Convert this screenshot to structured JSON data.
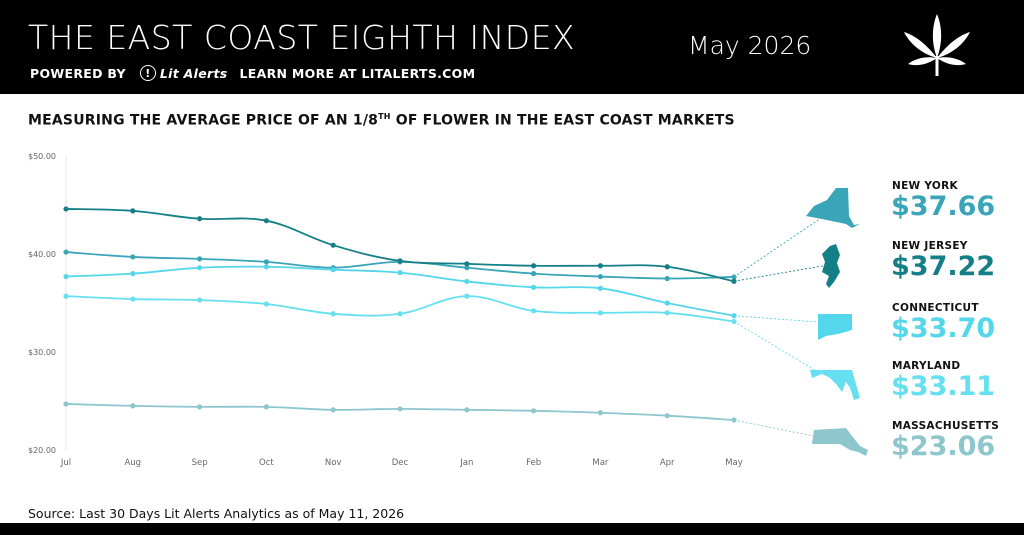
{
  "header": {
    "title": "THE EAST COAST EIGHTH INDEX",
    "date": "May 2026",
    "powered_by": "POWERED BY",
    "brand": "Lit Alerts",
    "learn_more": "LEARN MORE AT LITALERTS.COM"
  },
  "subtitle": {
    "before": "MEASURING THE AVERAGE PRICE OF AN 1/8",
    "sup": "TH",
    "after": " OF FLOWER IN THE EAST COAST MARKETS"
  },
  "source": "Source: Last 30 Days Lit Alerts Analytics as of May 11, 2026",
  "chart_data": {
    "type": "line",
    "categories": [
      "Jul",
      "Aug",
      "Sep",
      "Oct",
      "Nov",
      "Dec",
      "Jan",
      "Feb",
      "Mar",
      "Apr",
      "May"
    ],
    "y_ticks": [
      "$50.00",
      "$40.00",
      "$30.00",
      "$20.00"
    ],
    "ylim": [
      20,
      50
    ],
    "grid": false,
    "series": [
      {
        "name": "NEW YORK",
        "price": "$37.66",
        "color": "#3aa5b8",
        "values": [
          40.2,
          39.7,
          39.5,
          39.2,
          38.6,
          39.2,
          38.6,
          38.0,
          37.7,
          37.5,
          37.66
        ]
      },
      {
        "name": "NEW JERSEY",
        "price": "$37.22",
        "color": "#147f86",
        "values": [
          44.6,
          44.4,
          43.6,
          43.4,
          40.9,
          39.3,
          39.0,
          38.8,
          38.8,
          38.7,
          37.22
        ]
      },
      {
        "name": "CONNECTICUT",
        "price": "$33.70",
        "color": "#54d6eb",
        "values": [
          37.7,
          38.0,
          38.6,
          38.7,
          38.4,
          38.1,
          37.2,
          36.6,
          36.5,
          35.0,
          33.7
        ]
      },
      {
        "name": "MARYLAND",
        "price": "$33.11",
        "color": "#66e0f0",
        "values": [
          35.7,
          35.4,
          35.3,
          34.9,
          33.9,
          33.9,
          35.7,
          34.2,
          34.0,
          34.0,
          33.11
        ]
      },
      {
        "name": "MASSACHUSETTS",
        "price": "$23.06",
        "color": "#8dc6cc",
        "values": [
          24.7,
          24.5,
          24.4,
          24.4,
          24.1,
          24.2,
          24.1,
          24.0,
          23.8,
          23.5,
          23.06
        ]
      }
    ]
  }
}
